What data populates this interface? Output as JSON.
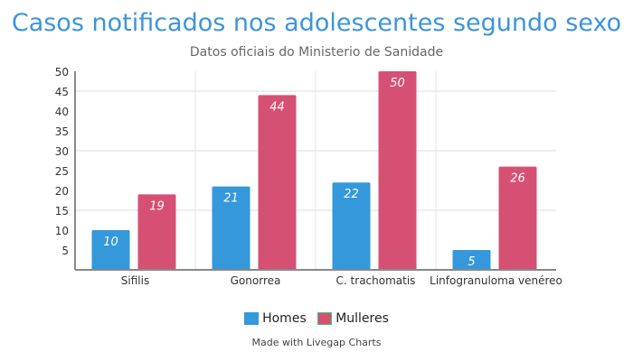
{
  "chart_data": {
    "type": "bar",
    "title": "Casos notificados nos adolescentes segundo sexo",
    "subtitle": "Datos oficiais do Ministerio de Sanidade",
    "categories": [
      "Sifilis",
      "Gonorrea",
      "C. trachomatis",
      "Linfogranuloma venéreo"
    ],
    "series": [
      {
        "name": "Homes",
        "color": "#3498db",
        "values": [
          10,
          21,
          22,
          5
        ]
      },
      {
        "name": "Mulleres",
        "color": "#d65074",
        "values": [
          19,
          44,
          50,
          26
        ]
      }
    ],
    "ylim": [
      0,
      50
    ],
    "yticks": [
      "5",
      "10",
      "15",
      "20",
      "25",
      "30",
      "35",
      "40",
      "45",
      "50"
    ],
    "grid": true,
    "legend_position": "bottom",
    "credit": "Made with Livegap Charts"
  }
}
